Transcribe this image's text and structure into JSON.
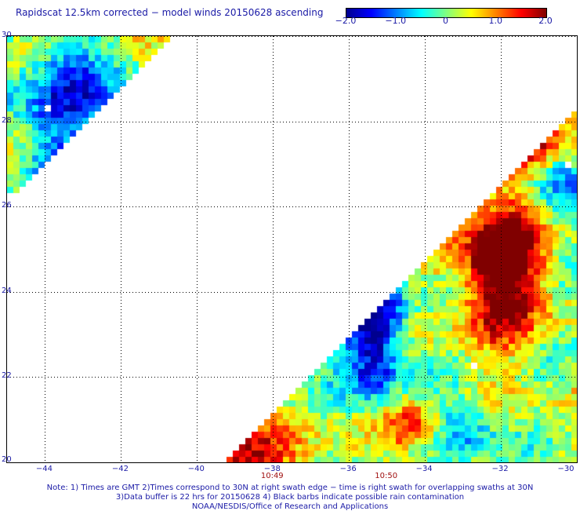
{
  "title": "Rapidscat 12.5km corrected − model winds 20150628 ascending",
  "colorbar": {
    "ticks": [
      {
        "label": "−2.0",
        "value": -2.0
      },
      {
        "label": "−1.0",
        "value": -1.0
      },
      {
        "label": "0",
        "value": 0
      },
      {
        "label": "1.0",
        "value": 1.0
      },
      {
        "label": "2.0",
        "value": 2.0
      }
    ],
    "colors": [
      "#00008f",
      "#0000ff",
      "#0080ff",
      "#00ffff",
      "#80ff80",
      "#ffff00",
      "#ff8000",
      "#ff0000",
      "#800000"
    ]
  },
  "map": {
    "lon_range": [
      -45,
      -30
    ],
    "lat_range": [
      20,
      30
    ],
    "lon_ticks": [
      {
        "value": -44,
        "label": "−44"
      },
      {
        "value": -42,
        "label": "−42"
      },
      {
        "value": -40,
        "label": "−40"
      },
      {
        "value": -38,
        "label": "−38"
      },
      {
        "value": -36,
        "label": "−36"
      },
      {
        "value": -34,
        "label": "−34"
      },
      {
        "value": -32,
        "label": "−32"
      },
      {
        "value": -30,
        "label": "−30"
      }
    ],
    "lat_ticks": [
      {
        "value": 30,
        "label": "30"
      },
      {
        "value": 28,
        "label": "28"
      },
      {
        "value": 26,
        "label": "26"
      },
      {
        "value": 24,
        "label": "24"
      },
      {
        "value": 22,
        "label": "22"
      },
      {
        "value": 20,
        "label": "20"
      }
    ],
    "grid": true
  },
  "times": [
    {
      "lon": -38,
      "label": "10:49"
    },
    {
      "lon": -35,
      "label": "10:50"
    }
  ],
  "notes": [
    "Note: 1) Times are GMT 2)Times correspond to 30N at right swath edge − time is right swath for overlapping swaths at 30N",
    "3)Data buffer is 22 hrs for 20150628 4) Black barbs indicate possible rain contamination",
    "NOAA/NESDIS/Office of Research and Applications"
  ]
}
